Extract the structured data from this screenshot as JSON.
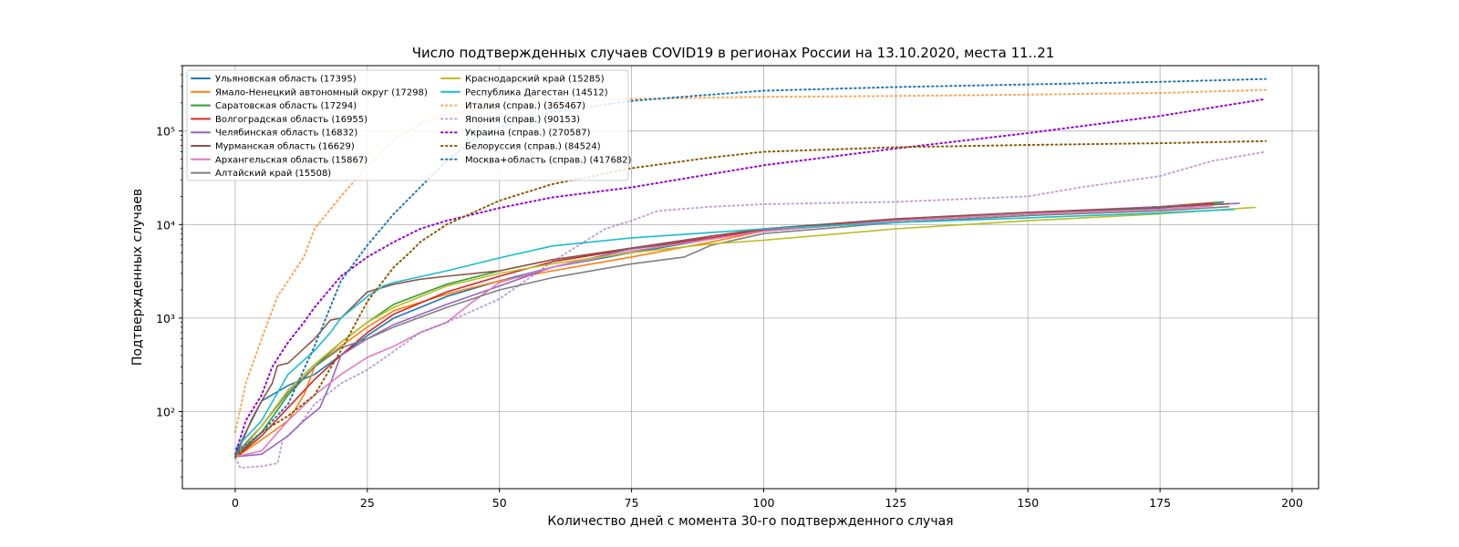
{
  "chart_data": {
    "type": "line",
    "title": "Число подтвержденных случаев COVID19 в регионах России на 13.10.2020, места 11..21",
    "xlabel": "Количество дней с момента 30-го подтвержденного случая",
    "ylabel": "Подтвержденных случаев",
    "xlim": [
      -10,
      205
    ],
    "ylim": [
      15,
      500000
    ],
    "yscale": "log",
    "grid": true,
    "legend_position": "top-left",
    "x_ticks": [
      0,
      25,
      50,
      75,
      100,
      125,
      150,
      175,
      200
    ],
    "x_tick_labels": [
      "0",
      "25",
      "50",
      "75",
      "100",
      "125",
      "150",
      "175",
      "200"
    ],
    "y_ticks": [
      100,
      1000,
      10000,
      100000
    ],
    "y_tick_labels": [
      "10²",
      "10³",
      "10⁴",
      "10⁵"
    ],
    "series": [
      {
        "name": "Ульяновская область (17395)",
        "color": "#1f77b4",
        "style": "solid",
        "x": [
          0,
          2,
          5,
          10,
          15,
          20,
          25,
          30,
          35,
          40,
          50,
          60,
          75,
          90,
          100,
          125,
          150,
          175,
          187
        ],
        "y": [
          35,
          60,
          130,
          190,
          250,
          400,
          650,
          1000,
          1300,
          1700,
          2500,
          3500,
          5000,
          7000,
          8500,
          11000,
          13000,
          15000,
          17395
        ]
      },
      {
        "name": "Ямало-Ненецкий автономный округ (17298)",
        "color": "#ff7f0e",
        "style": "solid",
        "x": [
          0,
          5,
          10,
          13,
          15,
          20,
          25,
          30,
          40,
          50,
          60,
          75,
          90,
          100,
          125,
          150,
          175,
          186
        ],
        "y": [
          32,
          50,
          80,
          150,
          300,
          500,
          800,
          1200,
          1800,
          2500,
          3200,
          4500,
          6500,
          8500,
          11000,
          13000,
          15500,
          17298
        ]
      },
      {
        "name": "Саратовская область (17294)",
        "color": "#2ca02c",
        "style": "solid",
        "x": [
          0,
          5,
          10,
          15,
          20,
          25,
          30,
          40,
          50,
          60,
          75,
          90,
          100,
          125,
          150,
          175,
          186
        ],
        "y": [
          32,
          60,
          150,
          300,
          550,
          900,
          1400,
          2300,
          3200,
          4200,
          5500,
          7000,
          8500,
          11000,
          13000,
          15500,
          17294
        ]
      },
      {
        "name": "Волгоградская область (16955)",
        "color": "#d62728",
        "style": "solid",
        "x": [
          0,
          5,
          10,
          15,
          20,
          25,
          30,
          40,
          50,
          60,
          75,
          90,
          100,
          125,
          150,
          175,
          185
        ],
        "y": [
          32,
          55,
          110,
          220,
          400,
          700,
          1100,
          1900,
          2800,
          4000,
          5500,
          7200,
          8800,
          11200,
          13200,
          15500,
          16955
        ]
      },
      {
        "name": "Челябинская область (16832)",
        "color": "#9467bd",
        "style": "solid",
        "x": [
          0,
          5,
          10,
          13,
          16,
          18,
          20,
          25,
          30,
          40,
          50,
          60,
          75,
          90,
          100,
          125,
          150,
          175,
          190
        ],
        "y": [
          33,
          35,
          55,
          80,
          110,
          200,
          400,
          600,
          850,
          1400,
          2200,
          3500,
          5500,
          7500,
          9000,
          11500,
          13500,
          15500,
          16832
        ]
      },
      {
        "name": "Мурманская область (16629)",
        "color": "#8c564b",
        "style": "solid",
        "x": [
          0,
          3,
          5,
          7,
          8,
          10,
          15,
          18,
          20,
          25,
          30,
          35,
          40,
          50,
          60,
          75,
          90,
          100,
          125,
          150,
          175,
          188
        ],
        "y": [
          32,
          80,
          130,
          200,
          310,
          330,
          600,
          950,
          1000,
          1900,
          2300,
          2600,
          2800,
          3200,
          4200,
          5600,
          7500,
          9000,
          11500,
          13500,
          15200,
          16629
        ]
      },
      {
        "name": "Архангельская область (15867)",
        "color": "#e377c2",
        "style": "solid",
        "x": [
          0,
          5,
          10,
          15,
          20,
          25,
          30,
          35,
          40,
          45,
          50,
          60,
          75,
          90,
          100,
          125,
          150,
          175,
          185
        ],
        "y": [
          33,
          38,
          80,
          150,
          250,
          380,
          500,
          700,
          900,
          1500,
          2400,
          3500,
          5200,
          7000,
          8500,
          11000,
          13000,
          14500,
          15867
        ]
      },
      {
        "name": "Алтайский край (15508)",
        "color": "#7f7f7f",
        "style": "solid",
        "x": [
          0,
          5,
          10,
          15,
          20,
          25,
          30,
          40,
          50,
          60,
          75,
          85,
          90,
          100,
          125,
          150,
          175,
          188
        ],
        "y": [
          35,
          70,
          160,
          300,
          480,
          600,
          800,
          1300,
          2000,
          2700,
          3800,
          4500,
          6000,
          8000,
          10500,
          12500,
          14000,
          15508
        ]
      },
      {
        "name": "Краснодарский край (15285)",
        "color": "#bcbd22",
        "style": "solid",
        "x": [
          0,
          5,
          10,
          15,
          20,
          25,
          30,
          40,
          50,
          60,
          75,
          90,
          100,
          125,
          150,
          175,
          193
        ],
        "y": [
          32,
          70,
          170,
          320,
          550,
          900,
          1300,
          2200,
          3000,
          3800,
          5000,
          6200,
          6800,
          9000,
          11000,
          13000,
          15285
        ]
      },
      {
        "name": "Республика Дагестан (14512)",
        "color": "#17becf",
        "style": "solid",
        "x": [
          0,
          5,
          10,
          15,
          18,
          20,
          25,
          28,
          30,
          40,
          50,
          60,
          75,
          90,
          100,
          125,
          150,
          175,
          189
        ],
        "y": [
          40,
          80,
          250,
          450,
          700,
          1000,
          1700,
          2200,
          2400,
          3200,
          4400,
          5900,
          7200,
          8200,
          9000,
          10500,
          11800,
          13300,
          14512
        ]
      },
      {
        "name": "Италия (справ.) (365467)",
        "color": "#ff7f0e",
        "style": "dotted",
        "opacity": 0.7,
        "x": [
          0,
          2,
          5,
          8,
          10,
          13,
          15,
          20,
          25,
          30,
          35,
          40,
          50,
          60,
          75,
          100,
          125,
          150,
          175,
          195
        ],
        "y": [
          60,
          200,
          600,
          1700,
          2500,
          4500,
          9000,
          20000,
          42000,
          80000,
          120000,
          150000,
          185000,
          205000,
          220000,
          232000,
          237000,
          245000,
          255000,
          275000
        ]
      },
      {
        "name": "Япония (справ.) (90153)",
        "color": "#9467bd",
        "style": "dotted",
        "opacity": 0.6,
        "x": [
          0,
          1,
          5,
          8,
          9,
          12,
          15,
          20,
          25,
          30,
          35,
          40,
          50,
          60,
          70,
          75,
          80,
          90,
          100,
          125,
          150,
          160,
          175,
          185,
          195
        ],
        "y": [
          32,
          25,
          26,
          28,
          50,
          70,
          120,
          200,
          280,
          440,
          700,
          900,
          1600,
          4000,
          9000,
          11000,
          14000,
          15500,
          16500,
          17500,
          20000,
          25000,
          33000,
          48000,
          60000
        ]
      },
      {
        "name": "Украина (справ.) (270587)",
        "color": "#9400d3",
        "style": "dotted",
        "x": [
          0,
          2,
          5,
          7,
          10,
          13,
          15,
          20,
          25,
          30,
          35,
          40,
          50,
          60,
          75,
          100,
          125,
          150,
          175,
          195
        ],
        "y": [
          35,
          80,
          150,
          300,
          550,
          900,
          1300,
          2800,
          4500,
          6500,
          9000,
          11000,
          15000,
          19500,
          25000,
          43000,
          65000,
          95000,
          145000,
          220000
        ]
      },
      {
        "name": "Белоруссия (справ.) (84524)",
        "color": "#8b5a00",
        "style": "dotted",
        "x": [
          0,
          5,
          10,
          15,
          20,
          25,
          30,
          33,
          35,
          40,
          50,
          60,
          75,
          90,
          100,
          125,
          150,
          175,
          195
        ],
        "y": [
          33,
          60,
          90,
          150,
          450,
          1500,
          3500,
          5000,
          6500,
          10000,
          18000,
          27000,
          40000,
          52000,
          60000,
          67000,
          71000,
          74000,
          78000
        ]
      },
      {
        "name": "Москва+область (справ.) (417682)",
        "color": "#1f77b4",
        "style": "dotted",
        "x": [
          0,
          5,
          10,
          15,
          20,
          25,
          30,
          35,
          40,
          45,
          50,
          60,
          75,
          90,
          100,
          125,
          150,
          175,
          195
        ],
        "y": [
          35,
          60,
          120,
          500,
          2500,
          6000,
          13000,
          25000,
          48000,
          80000,
          110000,
          160000,
          210000,
          245000,
          270000,
          295000,
          315000,
          335000,
          360000
        ]
      }
    ]
  }
}
